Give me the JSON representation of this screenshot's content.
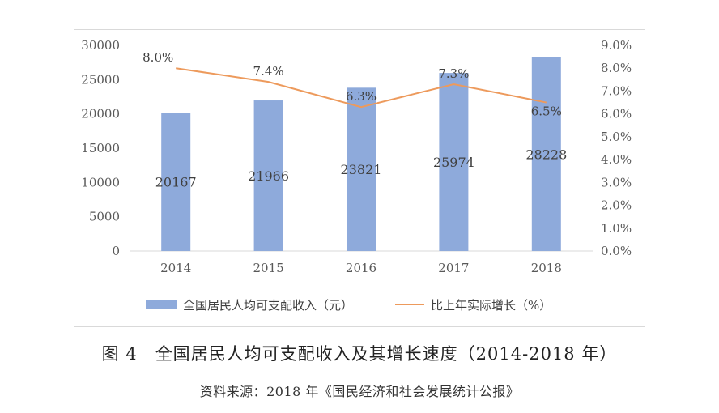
{
  "chart_data": {
    "type": "bar+line",
    "categories": [
      "2014",
      "2015",
      "2016",
      "2017",
      "2018"
    ],
    "series": [
      {
        "name": "全国居民人均可支配收入（元）",
        "type": "bar",
        "axis": "left",
        "values": [
          20167,
          21966,
          23821,
          25974,
          28228
        ],
        "color": "#8eaadb"
      },
      {
        "name": "比上年实际增长（%）",
        "type": "line",
        "axis": "right",
        "values": [
          8.0,
          7.4,
          6.3,
          7.3,
          6.5
        ],
        "labels": [
          "8.0%",
          "7.4%",
          "6.3%",
          "7.3%",
          "6.5%"
        ],
        "color": "#ed9a5c"
      }
    ],
    "y_left": {
      "min": 0,
      "max": 30000,
      "ticks": [
        "0",
        "5000",
        "10000",
        "15000",
        "20000",
        "25000",
        "30000"
      ]
    },
    "y_right": {
      "min": 0,
      "max": 9,
      "ticks": [
        "0.0%",
        "1.0%",
        "2.0%",
        "3.0%",
        "4.0%",
        "5.0%",
        "6.0%",
        "7.0%",
        "8.0%",
        "9.0%"
      ]
    },
    "legend_position": "bottom",
    "grid": false
  },
  "caption": {
    "figure_number": "图 4",
    "title": "全国居民人均可支配收入及其增长速度（2014-2018 年）",
    "source": "资料来源：2018 年《国民经济和社会发展统计公报》"
  }
}
